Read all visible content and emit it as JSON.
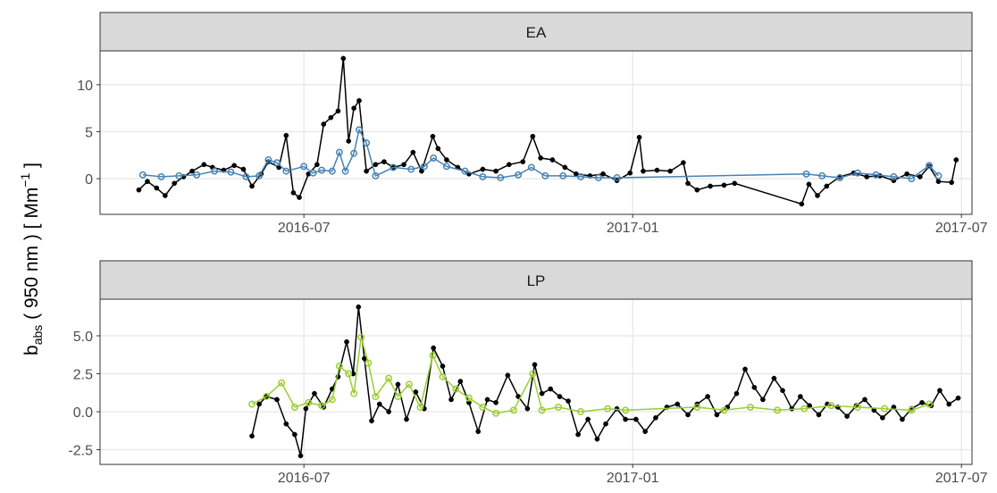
{
  "ylabel": {
    "base": "b",
    "sub": "abs",
    "main": " ( 950 nm ) [ Mm",
    "sup": "−1",
    "end": " ]"
  },
  "chart_data": [
    {
      "type": "line",
      "title": "EA",
      "xlim": [
        2016.19,
        2017.516
      ],
      "xticks": [
        {
          "value": 2016.5,
          "label": "2016-07"
        },
        {
          "value": 2017.0,
          "label": "2017-01"
        },
        {
          "value": 2017.5,
          "label": "2017-07"
        }
      ],
      "ylim": [
        -3.8,
        13.6
      ],
      "yticks": [
        0,
        5,
        10
      ],
      "grid": true,
      "series": [
        {
          "color": "#000000",
          "marker": "filled",
          "x": [
            2016.249,
            2016.262,
            2016.276,
            2016.289,
            2016.303,
            2016.317,
            2016.33,
            2016.348,
            2016.361,
            2016.378,
            2016.394,
            2016.408,
            2016.421,
            2016.435,
            2016.446,
            2016.462,
            2016.473,
            2016.484,
            2016.493,
            2016.507,
            2016.52,
            2016.53,
            2016.541,
            2016.552,
            2016.56,
            2016.568,
            2016.576,
            2016.584,
            2016.595,
            2016.609,
            2016.622,
            2016.636,
            2016.652,
            2016.666,
            2016.679,
            2016.696,
            2016.704,
            2016.717,
            2016.734,
            2016.751,
            2016.772,
            2016.792,
            2016.812,
            2016.833,
            2016.848,
            2016.86,
            2016.878,
            2016.897,
            2016.914,
            2016.935,
            2016.955,
            2016.976,
            2016.996,
            2017.01,
            2017.016,
            2017.037,
            2017.057,
            2017.077,
            2017.084,
            2017.098,
            2017.118,
            2017.139,
            2017.155,
            2017.257,
            2017.268,
            2017.281,
            2017.295,
            2017.315,
            2017.336,
            2017.356,
            2017.376,
            2017.397,
            2017.417,
            2017.437,
            2017.451,
            2017.465,
            2017.485,
            2017.492
          ],
          "values": [
            -1.2,
            -0.3,
            -1.0,
            -1.8,
            -0.5,
            0.2,
            0.8,
            1.5,
            1.2,
            0.9,
            1.4,
            1.0,
            -0.8,
            0.5,
            1.8,
            1.2,
            4.6,
            -1.5,
            -2.0,
            0.5,
            1.5,
            5.8,
            6.5,
            7.2,
            12.8,
            4.0,
            7.5,
            8.3,
            0.8,
            1.5,
            1.8,
            1.2,
            1.5,
            2.8,
            0.8,
            4.5,
            3.2,
            2.0,
            1.2,
            0.5,
            1.0,
            0.8,
            1.5,
            1.8,
            4.5,
            2.2,
            2.0,
            1.2,
            0.5,
            0.3,
            0.5,
            -0.2,
            0.6,
            4.4,
            0.8,
            0.9,
            0.8,
            1.7,
            -0.5,
            -1.2,
            -0.8,
            -0.7,
            -0.5,
            -2.7,
            -0.6,
            -1.8,
            -0.8,
            0.2,
            0.6,
            0.2,
            0.3,
            -0.2,
            0.5,
            0.2,
            1.3,
            -0.3,
            -0.4,
            2.0
          ]
        },
        {
          "color": "#4682b4",
          "marker": "open",
          "x": [
            2016.255,
            2016.283,
            2016.31,
            2016.337,
            2016.364,
            2016.389,
            2016.412,
            2016.432,
            2016.446,
            2016.459,
            2016.473,
            2016.5,
            2016.514,
            2016.527,
            2016.543,
            2016.554,
            2016.563,
            2016.576,
            2016.584,
            2016.595,
            2016.609,
            2016.636,
            2016.663,
            2016.683,
            2016.697,
            2016.717,
            2016.745,
            2016.772,
            2016.799,
            2016.826,
            2016.846,
            2016.867,
            2016.894,
            2016.921,
            2016.948,
            2016.976,
            2017.264,
            2017.288,
            2017.315,
            2017.342,
            2017.37,
            2017.397,
            2017.424,
            2017.451,
            2017.465
          ],
          "values": [
            0.4,
            0.2,
            0.3,
            0.4,
            0.8,
            0.7,
            0.2,
            0.3,
            2.0,
            1.7,
            0.8,
            1.3,
            0.6,
            0.9,
            0.8,
            2.8,
            0.8,
            2.7,
            5.2,
            3.8,
            0.3,
            1.2,
            1.0,
            1.3,
            2.2,
            1.3,
            0.8,
            0.2,
            0.1,
            0.4,
            1.2,
            0.3,
            0.3,
            0.2,
            0.1,
            0.1,
            0.5,
            0.3,
            0.1,
            0.6,
            0.4,
            0.2,
            0.0,
            1.4,
            0.3
          ]
        }
      ]
    },
    {
      "type": "line",
      "title": "LP",
      "xlim": [
        2016.19,
        2017.516
      ],
      "xticks": [
        {
          "value": 2016.5,
          "label": "2016-07"
        },
        {
          "value": 2017.0,
          "label": "2017-01"
        },
        {
          "value": 2017.5,
          "label": "2017-07"
        }
      ],
      "ylim": [
        -3.47,
        7.41
      ],
      "yticks": [
        {
          "value": -2.5,
          "label": "-2.5"
        },
        {
          "value": 0,
          "label": "0.0"
        },
        {
          "value": 2.5,
          "label": "2.5"
        },
        {
          "value": 5,
          "label": "5.0"
        }
      ],
      "grid": true,
      "series": [
        {
          "color": "#000000",
          "marker": "filled",
          "x": [
            2016.421,
            2016.432,
            2016.443,
            2016.459,
            2016.473,
            2016.486,
            2016.495,
            2016.503,
            2016.516,
            2016.53,
            2016.543,
            2016.552,
            2016.565,
            2016.575,
            2016.583,
            2016.592,
            2016.603,
            2016.615,
            2016.629,
            2016.643,
            2016.656,
            2016.67,
            2016.683,
            2016.697,
            2016.711,
            2016.724,
            2016.738,
            2016.751,
            2016.765,
            2016.779,
            2016.792,
            2016.81,
            2016.826,
            2016.84,
            2016.851,
            2016.862,
            2016.875,
            2016.889,
            2016.902,
            2016.917,
            2016.932,
            2016.946,
            2016.959,
            2016.976,
            2016.989,
            2017.005,
            2017.019,
            2017.035,
            2017.052,
            2017.068,
            2017.084,
            2017.098,
            2017.114,
            2017.128,
            2017.144,
            2017.158,
            2017.171,
            2017.185,
            2017.198,
            2017.215,
            2017.228,
            2017.242,
            2017.255,
            2017.269,
            2017.283,
            2017.296,
            2017.312,
            2017.326,
            2017.34,
            2017.353,
            2017.367,
            2017.38,
            2017.397,
            2017.41,
            2017.424,
            2017.44,
            2017.454,
            2017.467,
            2017.481,
            2017.495
          ],
          "values": [
            -1.6,
            0.5,
            1.0,
            0.8,
            -0.8,
            -1.5,
            -2.9,
            0.2,
            1.2,
            0.3,
            1.5,
            2.3,
            4.6,
            2.5,
            6.9,
            3.5,
            -0.6,
            0.5,
            0.0,
            1.8,
            -0.5,
            1.3,
            0.2,
            4.2,
            3.0,
            0.8,
            2.0,
            0.6,
            -1.3,
            0.8,
            0.6,
            2.4,
            1.0,
            0.2,
            3.1,
            1.2,
            1.5,
            1.0,
            0.7,
            -1.5,
            -0.5,
            -1.8,
            -0.8,
            0.2,
            -0.5,
            -0.5,
            -1.3,
            -0.4,
            0.3,
            0.5,
            -0.2,
            0.5,
            1.0,
            -0.2,
            0.3,
            1.2,
            2.8,
            1.6,
            0.8,
            2.2,
            1.4,
            0.2,
            1.0,
            0.4,
            -0.2,
            0.5,
            0.3,
            -0.3,
            0.4,
            0.8,
            0.1,
            -0.4,
            0.3,
            -0.5,
            0.2,
            0.6,
            0.4,
            1.4,
            0.5,
            0.9
          ]
        },
        {
          "color": "#9acd32",
          "marker": "open",
          "x": [
            2016.421,
            2016.443,
            2016.466,
            2016.486,
            2016.507,
            2016.527,
            2016.543,
            2016.554,
            2016.568,
            2016.576,
            2016.587,
            2016.598,
            2016.609,
            2016.629,
            2016.643,
            2016.66,
            2016.677,
            2016.696,
            2016.711,
            2016.731,
            2016.751,
            2016.772,
            2016.792,
            2016.819,
            2016.848,
            2016.862,
            2016.887,
            2016.921,
            2016.962,
            2016.989,
            2017.098,
            2017.139,
            2017.179,
            2017.22,
            2017.261,
            2017.302,
            2017.342,
            2017.383,
            2017.424,
            2017.451
          ],
          "values": [
            0.5,
            1.0,
            1.9,
            0.3,
            0.6,
            0.4,
            0.8,
            3.0,
            2.5,
            1.2,
            4.9,
            3.2,
            1.0,
            2.2,
            1.0,
            1.8,
            0.3,
            3.7,
            2.3,
            1.5,
            0.9,
            0.3,
            -0.1,
            0.1,
            2.5,
            0.1,
            0.3,
            0.0,
            0.2,
            0.1,
            0.3,
            0.1,
            0.3,
            0.1,
            0.2,
            0.4,
            0.3,
            0.2,
            0.1,
            0.5
          ]
        }
      ]
    }
  ]
}
